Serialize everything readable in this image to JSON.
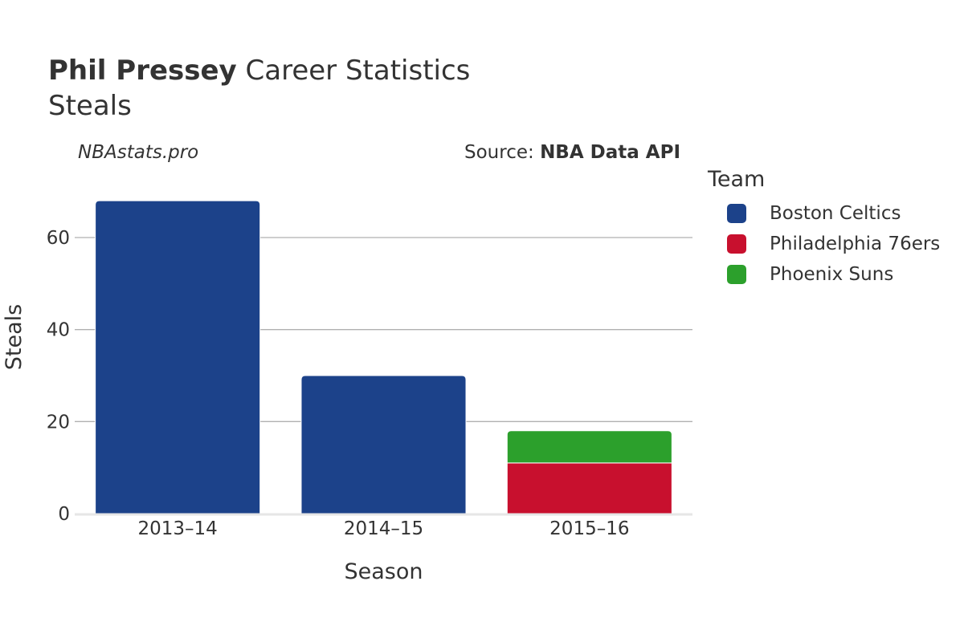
{
  "header": {
    "player": "Phil Pressey",
    "title_rest": "Career Statistics",
    "subtitle": "Steals",
    "watermark": "NBAstats.pro",
    "source_prefix": "Source: ",
    "source_name": "NBA Data API"
  },
  "legend": {
    "title": "Team",
    "items": [
      {
        "label": "Boston Celtics",
        "color": "#1c428a"
      },
      {
        "label": "Philadelphia 76ers",
        "color": "#c8102e"
      },
      {
        "label": "Phoenix Suns",
        "color": "#2ca02c"
      }
    ]
  },
  "chart_data": {
    "type": "bar",
    "stacked": true,
    "title": "Phil Pressey Career Statistics",
    "subtitle": "Steals",
    "xlabel": "Season",
    "ylabel": "Steals",
    "categories": [
      "2013–14",
      "2014–15",
      "2015–16"
    ],
    "series": [
      {
        "name": "Boston Celtics",
        "color": "#1c428a",
        "values": [
          68,
          30,
          0
        ]
      },
      {
        "name": "Philadelphia 76ers",
        "color": "#c8102e",
        "values": [
          0,
          0,
          11
        ]
      },
      {
        "name": "Phoenix Suns",
        "color": "#2ca02c",
        "values": [
          0,
          0,
          7
        ]
      }
    ],
    "ylim": [
      0,
      75
    ],
    "yticks": [
      0,
      20,
      40,
      60
    ],
    "grid": true,
    "legend_position": "right"
  }
}
